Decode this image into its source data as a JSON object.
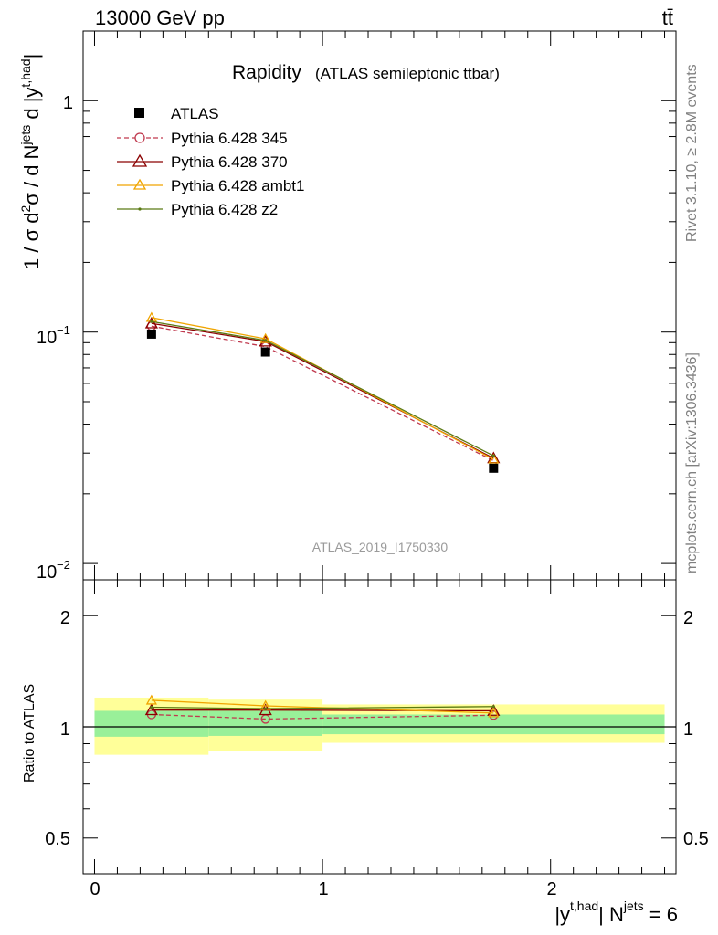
{
  "header": {
    "energy_label": "13000 GeV pp",
    "process_label": "tt̄"
  },
  "side_labels": {
    "rivet": "Rivet 3.1.10, ≥ 2.8M events",
    "mcplots": "mcplots.cern.ch [arXiv:1306.3436]"
  },
  "chart_data": [
    {
      "type": "line",
      "title": "Rapidity",
      "subtitle": "(ATLAS semileptonic ttbar)",
      "watermark": "ATLAS_2019_I1750330",
      "ylabel": "1 / σ d²σ / d Njets d |yt,had|",
      "ylabel_parts": {
        "a": "1 / σ d",
        "a_sup": "2",
        "b": "σ / d N",
        "b_sup": "jets",
        "c": " d |y",
        "c_sup": "t,had",
        "d": "|"
      },
      "yscale": "log",
      "ylim": [
        0.0085,
        2.0
      ],
      "xlim": [
        -0.05,
        2.55
      ],
      "ytick_labels": {
        "major_1": "1",
        "major_01_base": "10",
        "major_01_exp": "−1",
        "major_001_base": "10",
        "major_001_exp": "−2"
      },
      "legend": {
        "placement": "top-left",
        "entries": [
          "ATLAS",
          "Pythia 6.428 345",
          "Pythia 6.428 370",
          "Pythia 6.428 ambt1",
          "Pythia 6.428 z2"
        ]
      },
      "x": [
        0.25,
        0.75,
        1.75
      ],
      "series": [
        {
          "name": "ATLAS",
          "color": "#000000",
          "marker": "square",
          "values": [
            0.098,
            0.082,
            0.0258
          ]
        },
        {
          "name": "Pythia 6.428 345",
          "color": "#c0394e",
          "marker": "open-circle",
          "dashed": true,
          "values": [
            0.106,
            0.0865,
            0.0278
          ]
        },
        {
          "name": "Pythia 6.428 370",
          "color": "#8b0000",
          "marker": "open-triangle",
          "values": [
            0.109,
            0.091,
            0.0285
          ]
        },
        {
          "name": "Pythia 6.428 ambt1",
          "color": "#f0a500",
          "marker": "open-triangle",
          "values": [
            0.1155,
            0.0935,
            0.0282
          ]
        },
        {
          "name": "Pythia 6.428 z2",
          "color": "#5b7a14",
          "marker": "dot",
          "values": [
            0.111,
            0.092,
            0.0292
          ]
        }
      ]
    },
    {
      "type": "line",
      "ylabel": "Ratio to ATLAS",
      "xlabel": "|yt,had| Njets = 6",
      "xlabel_parts": {
        "a": "|y",
        "a_sup": "t,had",
        "b": "| N",
        "b_sup": "jets",
        "c": " = 6"
      },
      "yscale": "log",
      "ylim": [
        0.4,
        2.5
      ],
      "xlim": [
        -0.05,
        2.55
      ],
      "ytick_labels": [
        "0.5",
        "1",
        "2"
      ],
      "xtick_labels": [
        "0",
        "1",
        "2"
      ],
      "bands": [
        {
          "x0": 0.0,
          "x1": 0.5,
          "yellow": [
            0.84,
            1.2
          ],
          "green": [
            0.94,
            1.105
          ]
        },
        {
          "x0": 0.5,
          "x1": 1.0,
          "yellow": [
            0.86,
            1.185
          ],
          "green": [
            0.945,
            1.105
          ]
        },
        {
          "x0": 1.0,
          "x1": 2.5,
          "yellow": [
            0.905,
            1.15
          ],
          "green": [
            0.955,
            1.08
          ]
        }
      ],
      "x": [
        0.25,
        0.75,
        1.75
      ],
      "series": [
        {
          "name": "Pythia 6.428 345",
          "color": "#c0394e",
          "values": [
            1.08,
            1.05,
            1.075
          ]
        },
        {
          "name": "Pythia 6.428 370",
          "color": "#8b0000",
          "values": [
            1.11,
            1.11,
            1.105
          ]
        },
        {
          "name": "Pythia 6.428 ambt1",
          "color": "#f0a500",
          "values": [
            1.18,
            1.14,
            1.09
          ]
        },
        {
          "name": "Pythia 6.428 z2",
          "color": "#5b7a14",
          "values": [
            1.13,
            1.12,
            1.135
          ]
        }
      ]
    }
  ]
}
